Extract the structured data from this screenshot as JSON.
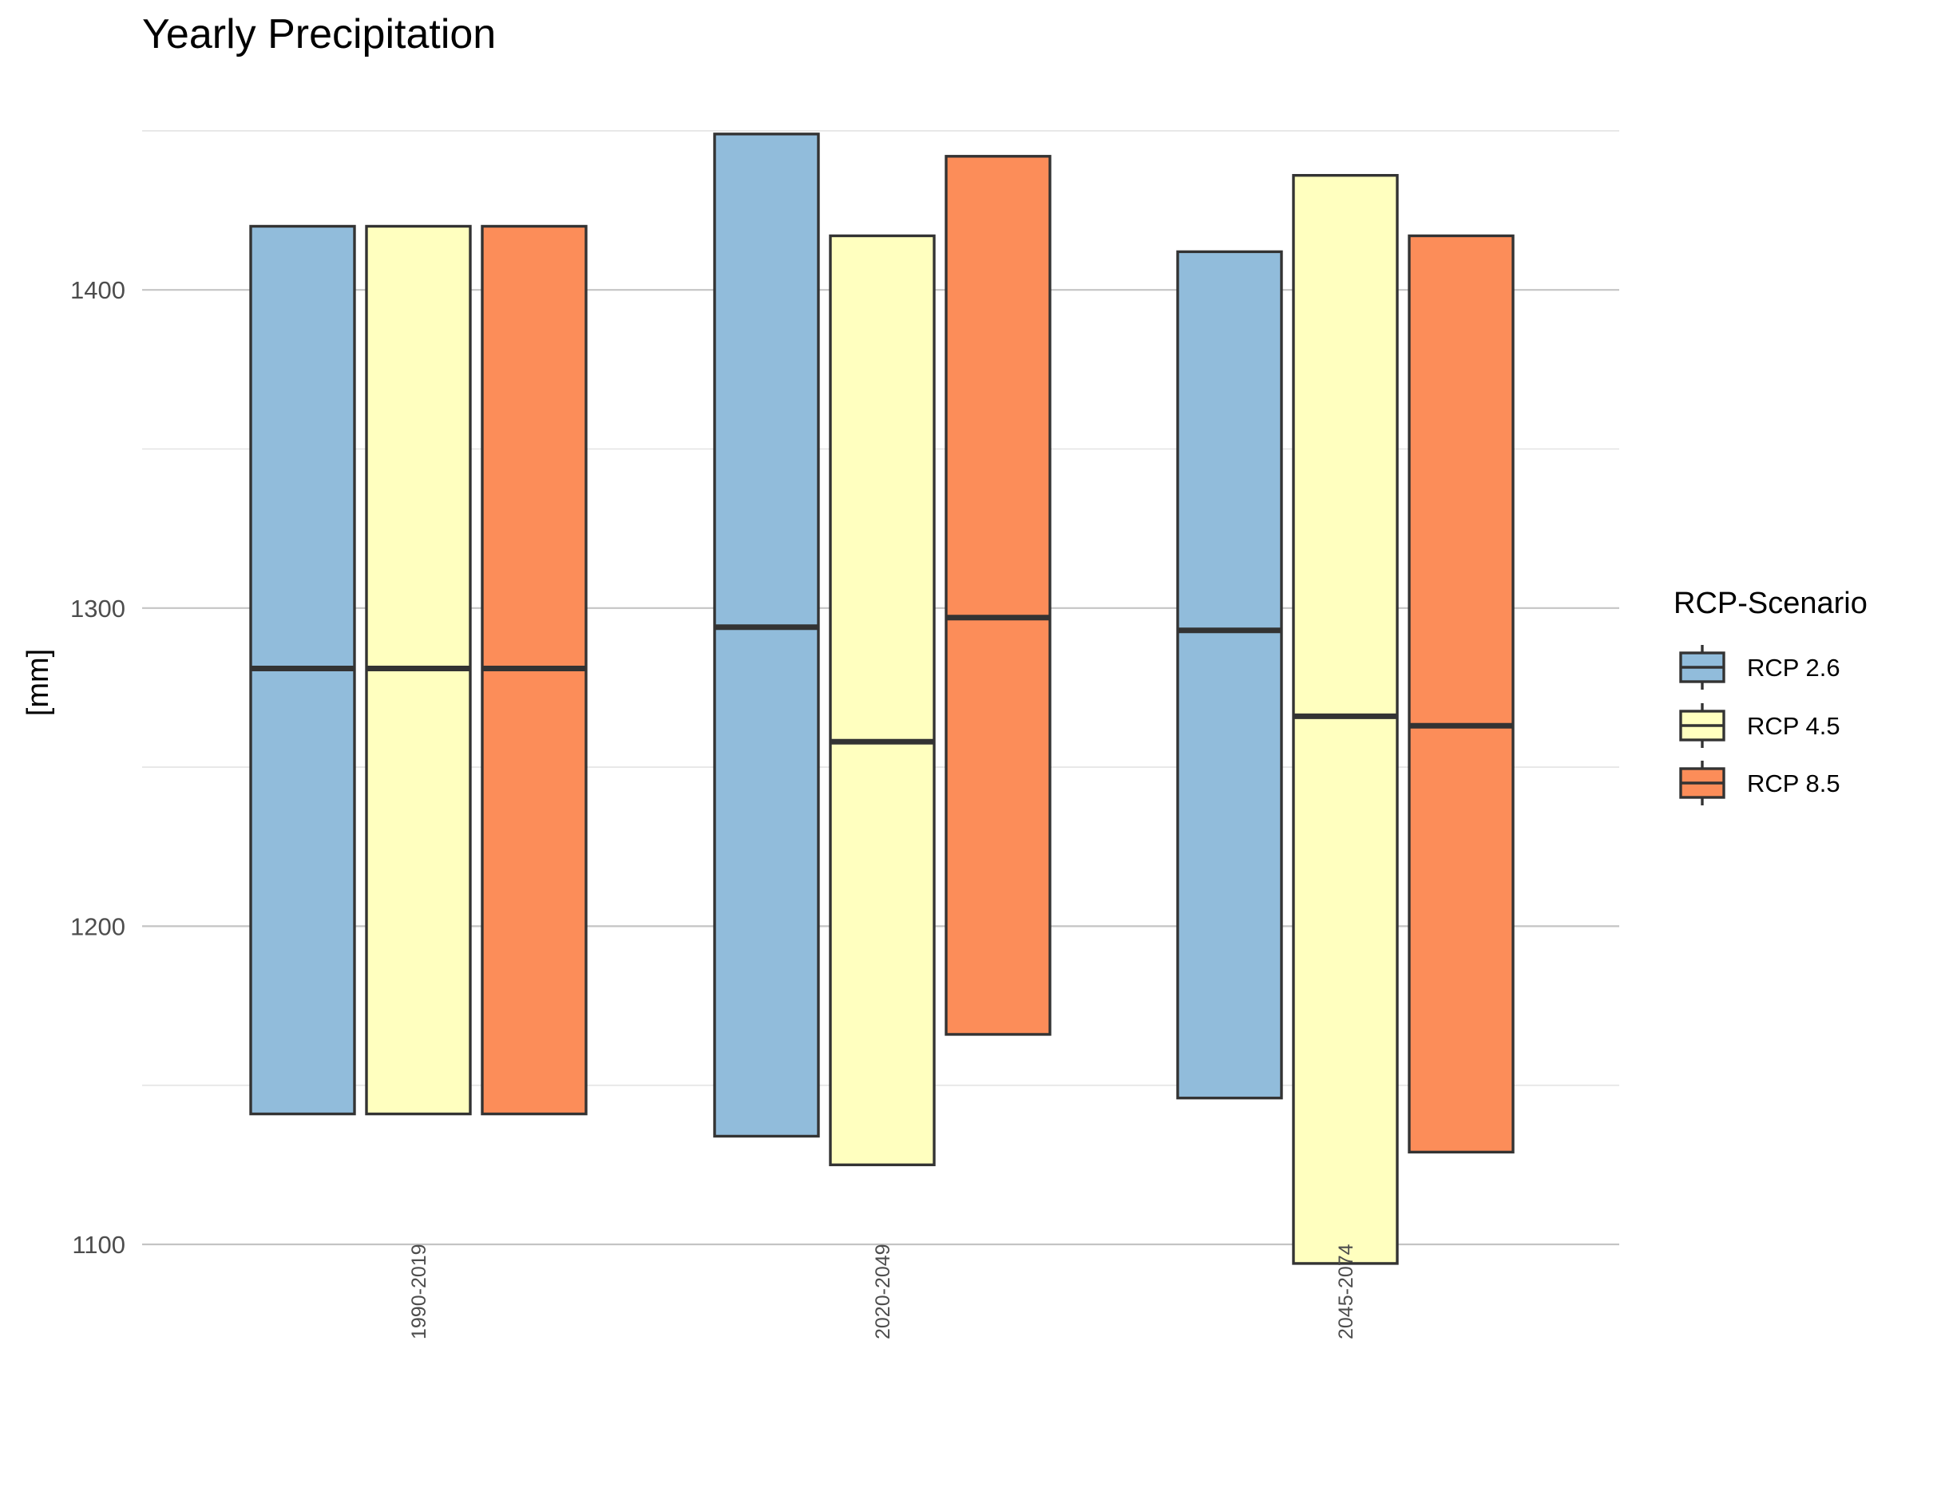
{
  "chart_data": {
    "type": "bar",
    "title": "Yearly Precipitation",
    "ylabel": "[mm]",
    "xlabel": "",
    "categories": [
      "1990-2019",
      "2020-2049",
      "2045-2074"
    ],
    "ylim": [
      1088,
      1455
    ],
    "yticks": [
      1100,
      1200,
      1300,
      1400
    ],
    "ytick_labels": [
      "1100",
      "1200",
      "1300",
      "1400"
    ],
    "minor_grid": [
      1150,
      1250,
      1350,
      1450
    ],
    "grid": true,
    "legend": {
      "title": "RCP-Scenario",
      "position": "right"
    },
    "series": [
      {
        "name": "RCP 2.6",
        "color": "#91bcdb",
        "low": [
          1141,
          1134,
          1146
        ],
        "median": [
          1281,
          1294,
          1293
        ],
        "high": [
          1420,
          1449,
          1412
        ]
      },
      {
        "name": "RCP 4.5",
        "color": "#ffffbf",
        "low": [
          1141,
          1125,
          1094
        ],
        "median": [
          1281,
          1258,
          1266
        ],
        "high": [
          1420,
          1417,
          1436
        ]
      },
      {
        "name": "RCP 8.5",
        "color": "#fc8d59",
        "low": [
          1141,
          1166,
          1129
        ],
        "median": [
          1281,
          1297,
          1263
        ],
        "high": [
          1420,
          1442,
          1417
        ]
      }
    ]
  }
}
